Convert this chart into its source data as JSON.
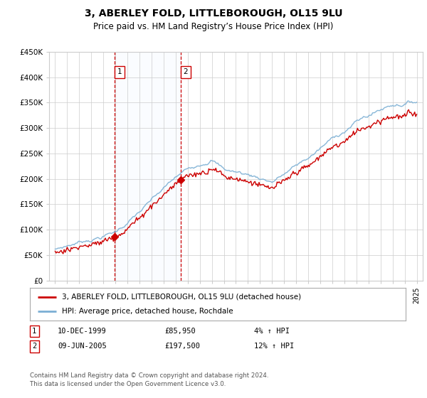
{
  "title": "3, ABERLEY FOLD, LITTLEBOROUGH, OL15 9LU",
  "subtitle": "Price paid vs. HM Land Registry’s House Price Index (HPI)",
  "ylabel_ticks": [
    "£0",
    "£50K",
    "£100K",
    "£150K",
    "£200K",
    "£250K",
    "£300K",
    "£350K",
    "£400K",
    "£450K"
  ],
  "ytick_values": [
    0,
    50000,
    100000,
    150000,
    200000,
    250000,
    300000,
    350000,
    400000,
    450000
  ],
  "ylim": [
    0,
    450000
  ],
  "xlim_start": 1994.5,
  "xlim_end": 2025.5,
  "sale1_x": 1999.94,
  "sale1_y": 85950,
  "sale2_x": 2005.44,
  "sale2_y": 197500,
  "sale1_label": "10-DEC-1999",
  "sale1_price": "£85,950",
  "sale1_hpi": "4% ↑ HPI",
  "sale2_label": "09-JUN-2005",
  "sale2_price": "£197,500",
  "sale2_hpi": "12% ↑ HPI",
  "legend_line1": "3, ABERLEY FOLD, LITTLEBOROUGH, OL15 9LU (detached house)",
  "legend_line2": "HPI: Average price, detached house, Rochdale",
  "footer": "Contains HM Land Registry data © Crown copyright and database right 2024.\nThis data is licensed under the Open Government Licence v3.0.",
  "line_color_red": "#cc0000",
  "line_color_blue": "#7bafd4",
  "marker_color": "#cc0000",
  "vline_color": "#cc0000",
  "background_color": "#ffffff",
  "grid_color": "#cccccc",
  "shade_color": "#ddeeff"
}
